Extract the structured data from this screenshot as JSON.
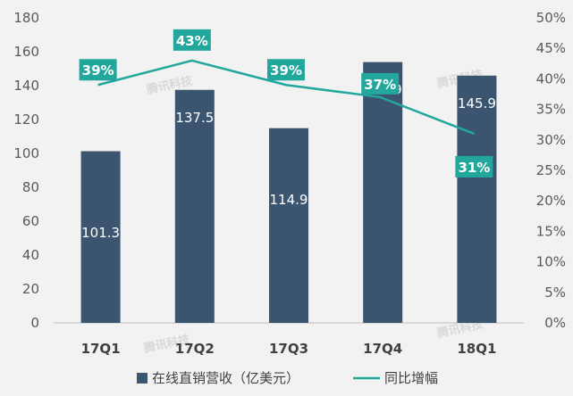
{
  "chart_data": {
    "type": "bar",
    "categories": [
      "17Q1",
      "17Q2",
      "17Q3",
      "17Q4",
      "18Q1"
    ],
    "series": [
      {
        "name": "在线直销营收（亿美元）",
        "type": "bar",
        "axis": "left",
        "values": [
          101.3,
          137.5,
          114.9,
          153.9,
          145.9
        ],
        "labels": [
          "101.3",
          "137.5",
          "114.9",
          "153.9",
          "145.9"
        ],
        "color": "#3b5470"
      },
      {
        "name": "同比增幅",
        "type": "line",
        "axis": "right",
        "values": [
          39,
          43,
          39,
          37,
          31
        ],
        "labels": [
          "39%",
          "43%",
          "39%",
          "37%",
          "31%"
        ],
        "color": "#22a79c"
      }
    ],
    "y_left": {
      "min": 0,
      "max": 180,
      "ticks": [
        "0",
        "20",
        "40",
        "60",
        "80",
        "100",
        "120",
        "140",
        "160",
        "180"
      ]
    },
    "y_right": {
      "min": 0,
      "max": 50,
      "ticks": [
        "0%",
        "5%",
        "10%",
        "15%",
        "20%",
        "25%",
        "30%",
        "35%",
        "40%",
        "45%",
        "50%"
      ]
    },
    "grid": false,
    "legend": "bottom",
    "watermark": "腾讯科技"
  }
}
